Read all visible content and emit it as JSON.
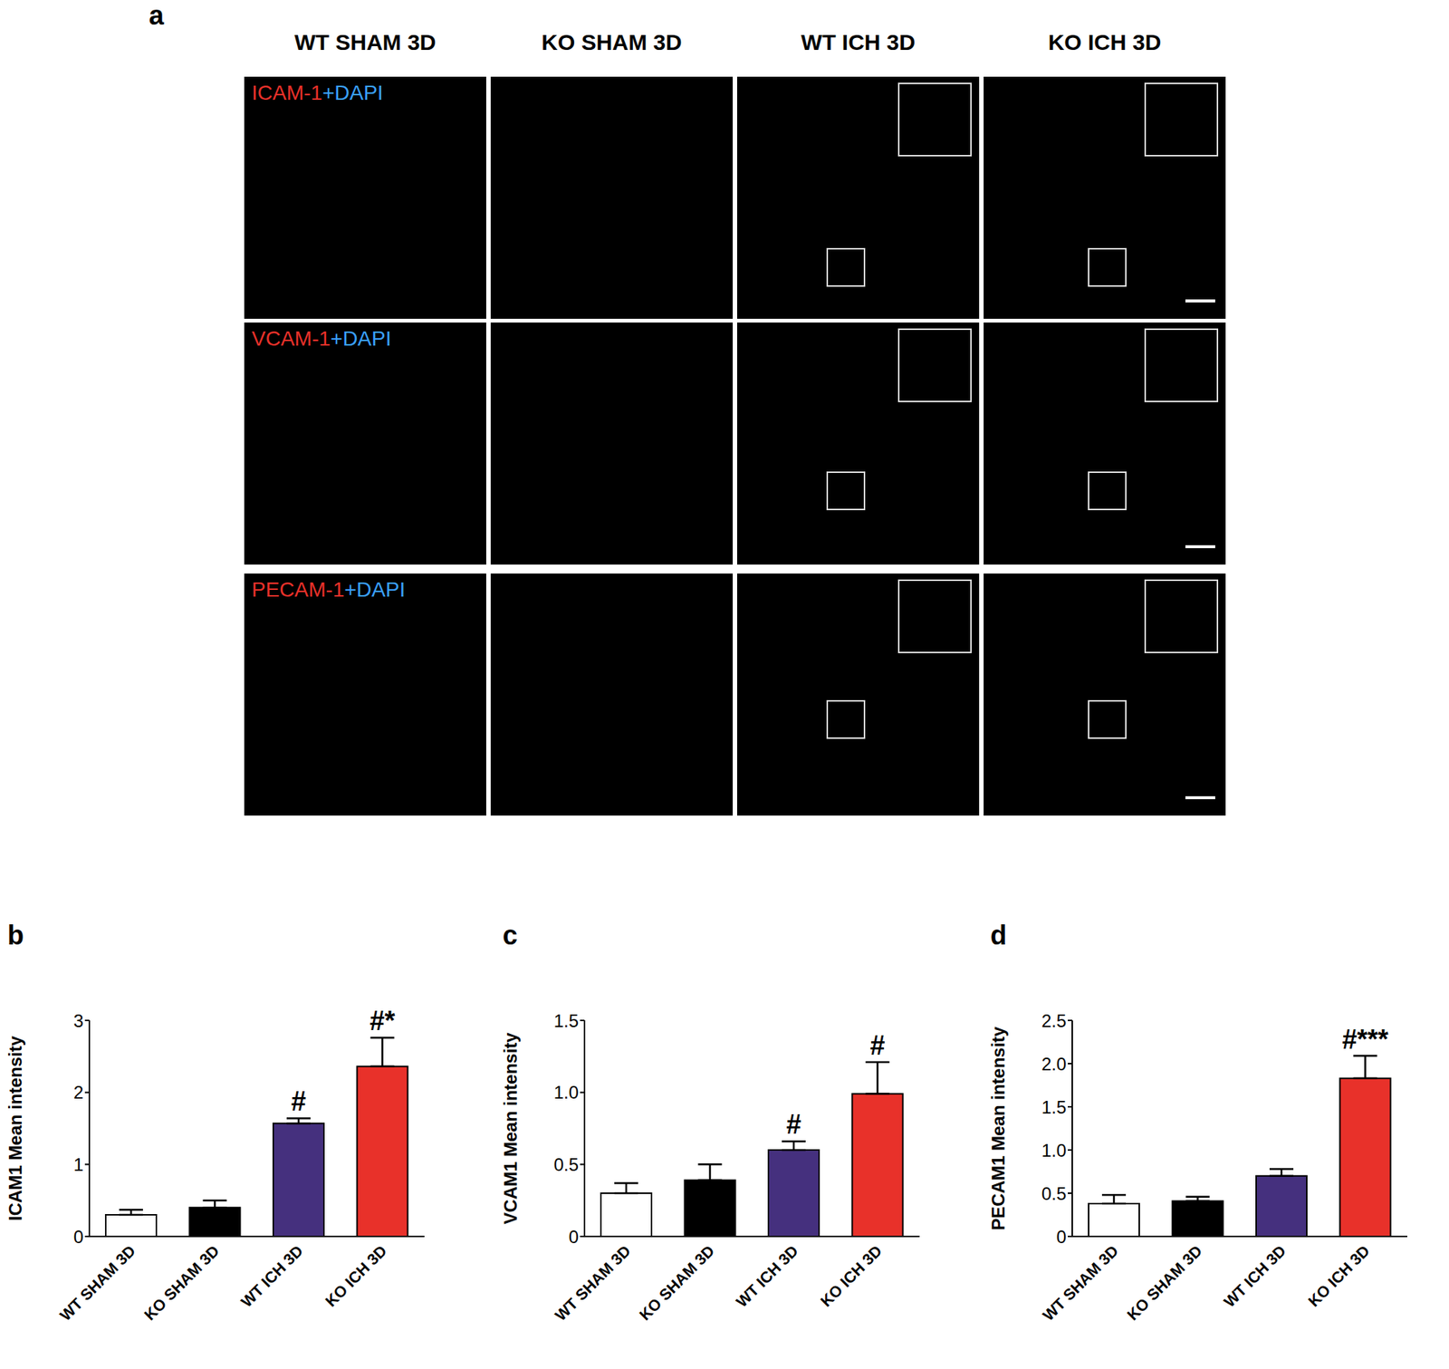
{
  "panel_a": {
    "panel": "a",
    "columns": [
      "WT SHAM 3D",
      "KO SHAM 3D",
      "WT ICH 3D",
      "KO ICH 3D"
    ],
    "rows": [
      {
        "stain": "ICAM-1",
        "counterstain": "+DAPI"
      },
      {
        "stain": "VCAM-1",
        "counterstain": "+DAPI"
      },
      {
        "stain": "PECAM-1",
        "counterstain": "+DAPI"
      }
    ]
  },
  "chart_data": [
    {
      "panel": "b",
      "type": "bar",
      "categories": [
        "WT SHAM 3D",
        "KO SHAM 3D",
        "WT ICH 3D",
        "KO ICH 3D"
      ],
      "values": [
        0.3,
        0.4,
        1.57,
        2.36
      ],
      "errors": [
        0.07,
        0.1,
        0.07,
        0.4
      ],
      "annotations": [
        null,
        null,
        "#",
        "#*"
      ],
      "colors": [
        "#ffffff",
        "#000000",
        "#45307e",
        "#e8312a"
      ],
      "y_label": "ICAM1 Mean intensity",
      "ylim": [
        0,
        3
      ],
      "yticks": [
        0,
        1,
        2,
        3
      ]
    },
    {
      "panel": "c",
      "type": "bar",
      "categories": [
        "WT SHAM 3D",
        "KO SHAM 3D",
        "WT ICH 3D",
        "KO ICH 3D"
      ],
      "values": [
        0.3,
        0.39,
        0.6,
        0.99
      ],
      "errors": [
        0.07,
        0.11,
        0.06,
        0.22
      ],
      "annotations": [
        null,
        null,
        "#",
        "#"
      ],
      "colors": [
        "#ffffff",
        "#000000",
        "#45307e",
        "#e8312a"
      ],
      "y_label": "VCAM1 Mean intensity",
      "ylim": [
        0,
        1.5
      ],
      "yticks": [
        0,
        0.5,
        {
          "value": 1,
          "label": "1.0"
        },
        1.5
      ]
    },
    {
      "panel": "d",
      "type": "bar",
      "categories": [
        "WT SHAM 3D",
        "KO SHAM 3D",
        "WT ICH 3D",
        "KO ICH 3D"
      ],
      "values": [
        0.38,
        0.41,
        0.7,
        1.83
      ],
      "errors": [
        0.1,
        0.05,
        0.08,
        0.26
      ],
      "annotations": [
        null,
        null,
        null,
        "#***"
      ],
      "colors": [
        "#ffffff",
        "#000000",
        "#45307e",
        "#e8312a"
      ],
      "y_label": "PECAM1 Mean intensity",
      "ylim": [
        0,
        2.5
      ],
      "yticks": [
        0,
        0.5,
        {
          "value": 1,
          "label": "1.0"
        },
        1.5,
        {
          "value": 2,
          "label": "2.0"
        },
        2.5
      ]
    }
  ]
}
